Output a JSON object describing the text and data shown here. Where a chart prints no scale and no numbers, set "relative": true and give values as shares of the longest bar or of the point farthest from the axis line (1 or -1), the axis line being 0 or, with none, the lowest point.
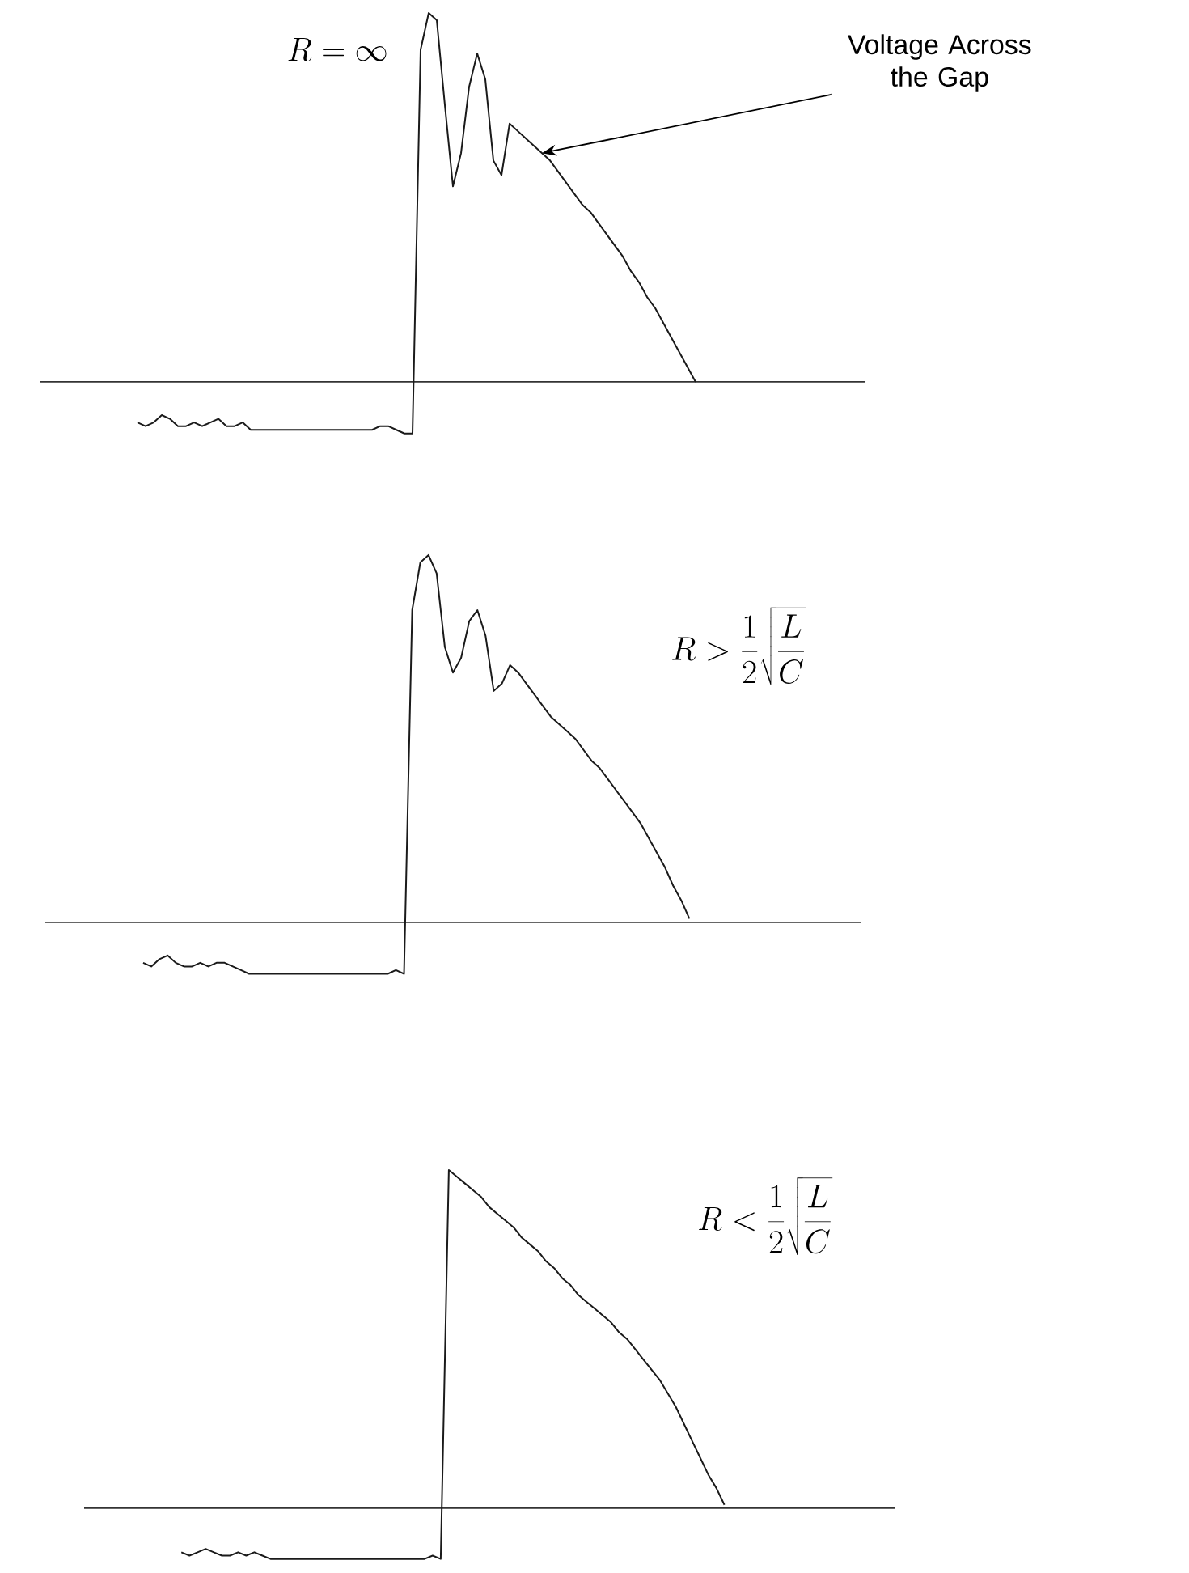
{
  "chart_data": [
    {
      "type": "line",
      "relative": true,
      "title": "R = \\infty",
      "color": "#1a1a1a",
      "annotations": [
        "Voltage Across the Gap"
      ],
      "categories": [
        null,
        null,
        null,
        null,
        null,
        null,
        null,
        null,
        null,
        null,
        null,
        null,
        null,
        null,
        null,
        null,
        null,
        null,
        null,
        null,
        null,
        null,
        null,
        null,
        null,
        null,
        null,
        null,
        null,
        null,
        null,
        null,
        null,
        null,
        null,
        null,
        null,
        null,
        null,
        null,
        null,
        null,
        null,
        null,
        null,
        null,
        null,
        null,
        null,
        null,
        null,
        null,
        null,
        null,
        null,
        null,
        null,
        null,
        null,
        null,
        null,
        null,
        null,
        null,
        null,
        null,
        null,
        null,
        null,
        null,
        null,
        null,
        null,
        null,
        null,
        null,
        null,
        null,
        null,
        null,
        null,
        null,
        null,
        null,
        null,
        null,
        null,
        null,
        null,
        null,
        null,
        null,
        null,
        null,
        null,
        null,
        null,
        null,
        null,
        null,
        null,
        null,
        null
      ],
      "values": [
        null,
        null,
        null,
        null,
        null,
        null,
        null,
        null,
        null,
        null,
        null,
        null,
        -0.11,
        -0.12,
        -0.11,
        -0.09,
        -0.1,
        -0.12,
        -0.12,
        -0.11,
        -0.12,
        -0.11,
        -0.1,
        -0.12,
        -0.12,
        -0.11,
        -0.13,
        -0.13,
        -0.13,
        -0.13,
        -0.13,
        -0.13,
        -0.13,
        -0.13,
        -0.13,
        -0.13,
        -0.13,
        -0.13,
        -0.13,
        -0.13,
        -0.13,
        -0.13,
        -0.12,
        -0.12,
        -0.13,
        -0.14,
        -0.14,
        0.9,
        1.0,
        0.98,
        0.75,
        0.53,
        0.62,
        0.8,
        0.89,
        0.82,
        0.6,
        0.56,
        0.7,
        0.68,
        0.66,
        0.64,
        0.62,
        0.6,
        0.57,
        0.54,
        0.51,
        0.48,
        0.46,
        0.43,
        0.4,
        0.37,
        0.34,
        0.3,
        0.27,
        0.23,
        0.2,
        0.16,
        0.12,
        0.08,
        0.04,
        0,
        null,
        null,
        null,
        null,
        null,
        null,
        null,
        null,
        null,
        null,
        null,
        null,
        null,
        null,
        null,
        null,
        null,
        null,
        null,
        null,
        null
      ]
    },
    {
      "type": "line",
      "relative": true,
      "title": "R > \\frac{1}{2}\\sqrt{\\frac{L}{C}}",
      "color": "#1a1a1a",
      "categories": [
        null,
        null,
        null,
        null,
        null,
        null,
        null,
        null,
        null,
        null,
        null,
        null,
        null,
        null,
        null,
        null,
        null,
        null,
        null,
        null,
        null,
        null,
        null,
        null,
        null,
        null,
        null,
        null,
        null,
        null,
        null,
        null,
        null,
        null,
        null,
        null,
        null,
        null,
        null,
        null,
        null,
        null,
        null,
        null,
        null,
        null,
        null,
        null,
        null,
        null,
        null,
        null,
        null,
        null,
        null,
        null,
        null,
        null,
        null,
        null,
        null,
        null,
        null,
        null,
        null,
        null,
        null,
        null,
        null,
        null,
        null,
        null,
        null,
        null,
        null,
        null,
        null,
        null,
        null,
        null,
        null,
        null,
        null,
        null,
        null,
        null,
        null,
        null,
        null,
        null,
        null,
        null,
        null,
        null,
        null,
        null,
        null,
        null,
        null,
        null,
        null
      ],
      "values": [
        null,
        null,
        null,
        null,
        null,
        null,
        null,
        null,
        null,
        null,
        null,
        null,
        -0.11,
        -0.12,
        -0.1,
        -0.09,
        -0.11,
        -0.12,
        -0.12,
        -0.11,
        -0.12,
        -0.11,
        -0.11,
        -0.12,
        -0.13,
        -0.14,
        -0.14,
        -0.14,
        -0.14,
        -0.14,
        -0.14,
        -0.14,
        -0.14,
        -0.14,
        -0.14,
        -0.14,
        -0.14,
        -0.14,
        -0.14,
        -0.14,
        -0.14,
        -0.14,
        -0.14,
        -0.13,
        -0.14,
        0.85,
        0.98,
        1.0,
        0.95,
        0.75,
        0.68,
        0.72,
        0.82,
        0.85,
        0.78,
        0.63,
        0.65,
        0.7,
        0.68,
        0.65,
        0.62,
        0.59,
        0.56,
        0.54,
        0.52,
        0.5,
        0.47,
        0.44,
        0.42,
        0.39,
        0.36,
        0.33,
        0.3,
        0.27,
        0.23,
        0.19,
        0.15,
        0.1,
        0.06,
        0.01,
        null,
        null,
        null,
        null,
        null,
        null,
        null,
        null,
        null,
        null,
        null,
        null,
        null,
        null,
        null,
        null,
        null,
        null,
        null,
        null,
        null
      ]
    },
    {
      "type": "line",
      "relative": true,
      "title": "R < \\frac{1}{2}\\sqrt{\\frac{L}{C}}",
      "color": "#1a1a1a",
      "categories": [
        null,
        null,
        null,
        null,
        null,
        null,
        null,
        null,
        null,
        null,
        null,
        null,
        null,
        null,
        null,
        null,
        null,
        null,
        null,
        null,
        null,
        null,
        null,
        null,
        null,
        null,
        null,
        null,
        null,
        null,
        null,
        null,
        null,
        null,
        null,
        null,
        null,
        null,
        null,
        null,
        null,
        null,
        null,
        null,
        null,
        null,
        null,
        null,
        null,
        null,
        null,
        null,
        null,
        null,
        null,
        null,
        null,
        null,
        null,
        null,
        null,
        null,
        null,
        null,
        null,
        null,
        null,
        null,
        null,
        null,
        null,
        null,
        null,
        null,
        null,
        null,
        null,
        null,
        null,
        null,
        null,
        null,
        null,
        null,
        null,
        null,
        null,
        null,
        null,
        null,
        null,
        null,
        null,
        null,
        null,
        null,
        null,
        null,
        null,
        null,
        null
      ],
      "values": [
        null,
        null,
        null,
        null,
        null,
        null,
        null,
        null,
        null,
        null,
        null,
        null,
        -0.13,
        -0.14,
        -0.13,
        -0.12,
        -0.13,
        -0.14,
        -0.14,
        -0.13,
        -0.14,
        -0.13,
        -0.14,
        -0.15,
        -0.15,
        -0.15,
        -0.15,
        -0.15,
        -0.15,
        -0.15,
        -0.15,
        -0.15,
        -0.15,
        -0.15,
        -0.15,
        -0.15,
        -0.15,
        -0.15,
        -0.15,
        -0.15,
        -0.15,
        -0.15,
        -0.15,
        -0.14,
        -0.15,
        1.0,
        0.98,
        0.96,
        0.94,
        0.92,
        0.89,
        0.87,
        0.85,
        0.83,
        0.8,
        0.78,
        0.76,
        0.73,
        0.71,
        0.68,
        0.66,
        0.63,
        0.61,
        0.59,
        0.57,
        0.55,
        0.52,
        0.5,
        0.47,
        0.44,
        0.41,
        0.38,
        0.34,
        0.3,
        0.25,
        0.2,
        0.15,
        0.1,
        0.06,
        0.01,
        null,
        null,
        null,
        null,
        null,
        null,
        null,
        null,
        null,
        null,
        null,
        null,
        null,
        null,
        null,
        null,
        null,
        null,
        null,
        null,
        null
      ]
    }
  ]
}
